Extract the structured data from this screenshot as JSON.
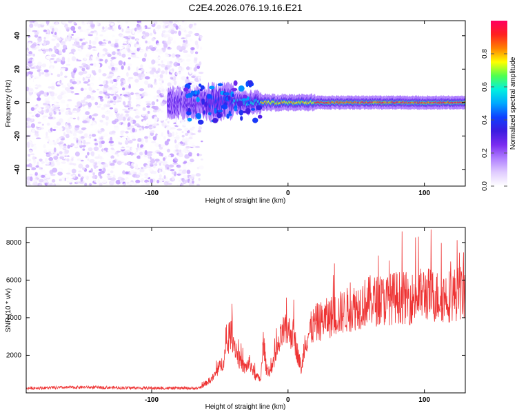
{
  "figure_title": "C2E4.2026.076.19.16.E21",
  "colors": {
    "heat_scale": [
      "#ffffff",
      "#e0ccff",
      "#b080ff",
      "#7a2cf0",
      "#3c1ce0",
      "#1040ff",
      "#00a8ff",
      "#00f0e0",
      "#50ff50",
      "#ffff00",
      "#ff8000",
      "#ff2020",
      "#ff0060"
    ],
    "snr_line": "#ee3333",
    "axis": "#000000"
  },
  "chart_data": [
    {
      "type": "heatmap",
      "title": "C2E4.2026.076.19.16.E21",
      "xlabel": "Height of straight line (km)",
      "ylabel": "Frequency (Hz)",
      "xlim": [
        -192,
        130
      ],
      "ylim": [
        -50,
        49
      ],
      "x_ticks": [
        -100,
        0,
        100
      ],
      "x_tick_labels": [
        "-100",
        "0",
        "100"
      ],
      "y_ticks": [
        -40,
        -20,
        0,
        20,
        40
      ],
      "y_tick_labels": [
        "-40",
        "-20",
        "0",
        "20",
        "40"
      ],
      "colorbar": {
        "label": "Normalized spectral amplitude",
        "range": [
          0,
          1
        ],
        "ticks": [
          0,
          0.2,
          0.4,
          0.6,
          0.8
        ],
        "tick_labels": [
          "0.0",
          "0.2",
          "0.4",
          "0.6",
          "0.8"
        ]
      },
      "regions": [
        {
          "name": "noise",
          "x_range": [
            -192,
            -63
          ],
          "freq_range": [
            -50,
            49
          ],
          "amplitude_range": [
            0.0,
            0.3
          ]
        },
        {
          "name": "signal",
          "x_range": [
            -88,
            130
          ],
          "center_freq": 0,
          "peak_amplitude": 1.0
        }
      ]
    },
    {
      "type": "line",
      "xlabel": "Height of straight line (km)",
      "ylabel": "SNR (10 * v/v)",
      "xlim": [
        -192,
        130
      ],
      "ylim": [
        0,
        8800
      ],
      "x_ticks": [
        -100,
        0,
        100
      ],
      "x_tick_labels": [
        "-100",
        "0",
        "100"
      ],
      "y_ticks": [
        2000,
        4000,
        6000,
        8000
      ],
      "y_tick_labels": [
        "2000",
        "4000",
        "6000",
        "8000"
      ],
      "series": [
        {
          "name": "SNR",
          "x": [
            -192,
            -150,
            -100,
            -65,
            -55,
            -48,
            -44,
            -42,
            -40,
            -36,
            -32,
            -28,
            -24,
            -20,
            -18,
            -16,
            -12,
            -8,
            -4,
            0,
            4,
            8,
            10,
            12,
            16,
            20,
            30,
            40,
            50,
            60,
            70,
            80,
            90,
            100,
            110,
            120,
            130
          ],
          "values": [
            250,
            300,
            250,
            250,
            800,
            1600,
            2600,
            3200,
            2800,
            1800,
            1300,
            1600,
            900,
            700,
            2800,
            1300,
            1100,
            2200,
            3200,
            3300,
            3100,
            1800,
            1200,
            2600,
            3300,
            3700,
            4000,
            4300,
            4600,
            4900,
            4900,
            5100,
            5000,
            5300,
            5100,
            5200,
            5400
          ]
        }
      ]
    }
  ]
}
